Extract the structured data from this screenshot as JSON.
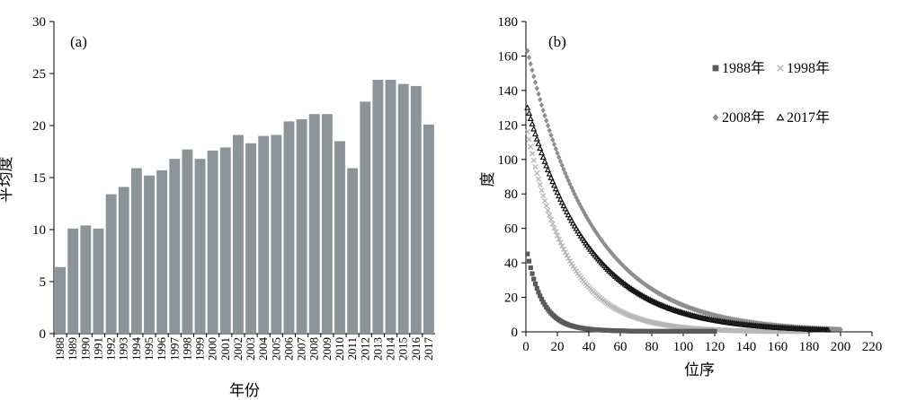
{
  "chart_data": [
    {
      "type": "bar",
      "panel_label": "(a)",
      "xlabel": "年份",
      "ylabel": "平均度",
      "ylim": [
        0,
        30
      ],
      "yticks": [
        0,
        5,
        10,
        15,
        20,
        25,
        30
      ],
      "grid": false,
      "bar_color": "#8a9599",
      "categories": [
        "1988",
        "1989",
        "1990",
        "1991",
        "1992",
        "1993",
        "1994",
        "1995",
        "1996",
        "1997",
        "1998",
        "1999",
        "2000",
        "2001",
        "2002",
        "2003",
        "2004",
        "2005",
        "2006",
        "2007",
        "2008",
        "2009",
        "2010",
        "2011",
        "2012",
        "2013",
        "2014",
        "2015",
        "2016",
        "2017"
      ],
      "values": [
        6.4,
        10.1,
        10.4,
        10.1,
        13.4,
        14.1,
        15.9,
        15.2,
        15.7,
        16.8,
        17.7,
        16.8,
        17.6,
        17.9,
        19.1,
        18.3,
        19.0,
        19.1,
        20.4,
        20.6,
        21.1,
        21.1,
        18.5,
        15.9,
        22.3,
        24.4,
        24.4,
        24.0,
        23.8,
        20.1
      ]
    },
    {
      "type": "scatter",
      "panel_label": "(b)",
      "xlabel": "位序",
      "ylabel": "度",
      "xlim": [
        0,
        220
      ],
      "ylim": [
        0,
        180
      ],
      "xticks": [
        0,
        20,
        40,
        60,
        80,
        100,
        120,
        140,
        160,
        180,
        200,
        220
      ],
      "yticks": [
        0,
        20,
        40,
        60,
        80,
        100,
        120,
        140,
        160,
        180
      ],
      "grid": false,
      "legend_position": "top-right",
      "series": [
        {
          "name": "1988年",
          "marker": "square",
          "color": "#5a5a5a",
          "n": 120,
          "ymax": 44,
          "decay": 10,
          "floor": 1.2,
          "tail": 0.012
        },
        {
          "name": "1998年",
          "marker": "x",
          "color": "#b7b7b7",
          "n": 178,
          "ymax": 116,
          "decay": 26,
          "floor": 0,
          "tail": 0
        },
        {
          "name": "2008年",
          "marker": "diamond",
          "color": "#8e8e8e",
          "n": 200,
          "ymax": 163,
          "decay": 42,
          "floor": 0,
          "tail": 0
        },
        {
          "name": "2017年",
          "marker": "triangle",
          "color": "#141414",
          "n": 192,
          "ymax": 130,
          "decay": 40,
          "floor": 0,
          "tail": 0
        }
      ]
    }
  ]
}
